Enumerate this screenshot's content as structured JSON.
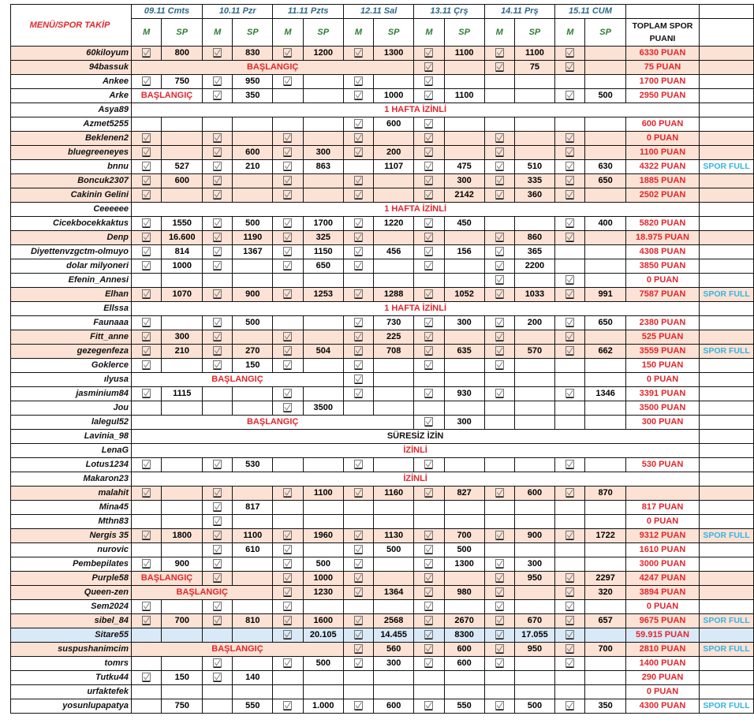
{
  "header": {
    "title": "MENÜ/SPOR TAKİP",
    "days": [
      "09.11 Cmts",
      "10.11 Pzr",
      "11.11 Pzts",
      "12.11 Sal",
      "13.11 Çrş",
      "14.11 Prş",
      "15.11 CUM"
    ],
    "m_label": "M",
    "sp_label": "SP",
    "total_label_1": "TOPLAM SPOR",
    "total_label_2": "PUANI"
  },
  "colors": {
    "highlight_pink": "#fbe2d5",
    "highlight_blue": "#dae9f8",
    "total_red": "#e3262b",
    "spor_full": "#35b3e3"
  },
  "rows": [
    {
      "name": "60kiloyum",
      "hl": "pink",
      "cells": [
        true,
        "800",
        true,
        "830",
        true,
        "1200",
        true,
        "1300",
        true,
        "1100",
        true,
        "1100",
        true,
        ""
      ],
      "total": "6330 PUAN",
      "note": ""
    },
    {
      "name": "94bassuk",
      "hl": "pink",
      "span": {
        "cols": 8,
        "text": "BAŞLANGIÇ",
        "color": "red"
      },
      "cells": [
        true,
        "",
        true,
        "75",
        true,
        ""
      ],
      "total": "75 PUAN",
      "note": ""
    },
    {
      "name": "Ankee",
      "hl": "",
      "cells": [
        true,
        "750",
        true,
        "950",
        true,
        "",
        true,
        "",
        true,
        "",
        "",
        "",
        "",
        ""
      ],
      "total": "1700 PUAN",
      "note": ""
    },
    {
      "name": "Arke",
      "hl": "",
      "span": {
        "cols": 2,
        "text": "BAŞLANGIÇ",
        "color": "red"
      },
      "cells": [
        true,
        "350",
        "",
        "",
        true,
        "1000",
        true,
        "1100",
        "",
        "",
        true,
        "500"
      ],
      "total": "2950 PUAN",
      "note": ""
    },
    {
      "name": "Asya89",
      "hl": "",
      "span": {
        "cols": 15,
        "text": "1 HAFTA İZİNLİ",
        "color": "red"
      },
      "cells": [],
      "note": ""
    },
    {
      "name": "Azmet5255",
      "hl": "",
      "cells": [
        "",
        "",
        "",
        "",
        "",
        "",
        true,
        "600",
        true,
        "",
        "",
        "",
        "",
        ""
      ],
      "total": "600 PUAN",
      "note": ""
    },
    {
      "name": "Beklenen2",
      "hl": "pink",
      "cells": [
        true,
        "",
        true,
        "",
        true,
        "",
        true,
        "",
        true,
        "",
        true,
        "",
        true,
        ""
      ],
      "total": "0 PUAN",
      "note": ""
    },
    {
      "name": "bluegreeneyes",
      "hl": "pink",
      "cells": [
        true,
        "",
        true,
        "600",
        true,
        "300",
        true,
        "200",
        true,
        "",
        true,
        "",
        true,
        ""
      ],
      "total": "1100 PUAN",
      "note": ""
    },
    {
      "name": "bnnu",
      "hl": "",
      "cells": [
        true,
        "527",
        true,
        "210",
        true,
        "863",
        "",
        "1107",
        true,
        "475",
        true,
        "510",
        true,
        "630"
      ],
      "total": "4322 PUAN",
      "note": "SPOR FULL"
    },
    {
      "name": "Boncuk2307",
      "hl": "pink",
      "cells": [
        true,
        "600",
        true,
        "",
        true,
        "",
        true,
        "",
        true,
        "300",
        true,
        "335",
        true,
        "650"
      ],
      "total": "1885  PUAN",
      "note": ""
    },
    {
      "name": "Cakinin Gelini",
      "hl": "pink",
      "cells": [
        true,
        "",
        true,
        "",
        true,
        "",
        true,
        "",
        true,
        "2142",
        true,
        "360",
        true,
        ""
      ],
      "total": "2502  PUAN",
      "note": ""
    },
    {
      "name": "Ceeeeee",
      "hl": "",
      "span": {
        "cols": 15,
        "text": "1 HAFTA İZİNLİ",
        "color": "red"
      },
      "cells": [],
      "note": ""
    },
    {
      "name": "Cicekbocekkaktus",
      "hl": "",
      "cells": [
        true,
        "1550",
        true,
        "500",
        true,
        "1700",
        true,
        "1220",
        true,
        "450",
        "",
        "",
        true,
        "400"
      ],
      "total": "5820 PUAN",
      "note": ""
    },
    {
      "name": "Denp",
      "hl": "pink",
      "cells": [
        true,
        "16.600",
        true,
        "1190",
        true,
        "325",
        true,
        "",
        true,
        "",
        true,
        "860",
        true,
        ""
      ],
      "total": "18.975 PUAN",
      "note": ""
    },
    {
      "name": "Diyettenvzgctm-olmuyo",
      "hl": "",
      "cells": [
        true,
        "814",
        true,
        "1367",
        true,
        "1150",
        true,
        "456",
        true,
        "156",
        true,
        "365",
        "",
        ""
      ],
      "total": "4308 PUAN",
      "note": ""
    },
    {
      "name": "dolar milyoneri",
      "hl": "",
      "cells": [
        true,
        "1000",
        true,
        "",
        true,
        "650",
        true,
        "",
        true,
        "",
        true,
        "2200",
        "",
        ""
      ],
      "total": "3850 PUAN",
      "note": ""
    },
    {
      "name": "Efenin_Annesi",
      "hl": "",
      "cells": [
        "",
        "",
        "",
        "",
        "",
        "",
        "",
        "",
        "",
        "",
        true,
        "",
        true,
        ""
      ],
      "total": "0 PUAN",
      "note": ""
    },
    {
      "name": "Elhan",
      "hl": "pink",
      "cells": [
        true,
        "1070",
        true,
        "900",
        true,
        "1253",
        true,
        "1288",
        true,
        "1052",
        true,
        "1033",
        true,
        "991"
      ],
      "total": "7587 PUAN",
      "note": "SPOR FULL"
    },
    {
      "name": "Ellssa",
      "hl": "",
      "span": {
        "cols": 15,
        "text": "1 HAFTA İZİNLİ",
        "color": "red"
      },
      "cells": [],
      "note": ""
    },
    {
      "name": "Faunaaa",
      "hl": "",
      "cells": [
        true,
        "",
        true,
        "500",
        "",
        "",
        true,
        "730",
        true,
        "300",
        true,
        "200",
        true,
        "650"
      ],
      "total": "2380 PUAN",
      "note": ""
    },
    {
      "name": "Fitt_anne",
      "hl": "pink",
      "cells": [
        true,
        "300",
        true,
        "",
        true,
        "",
        true,
        "225",
        true,
        "",
        true,
        "",
        true,
        ""
      ],
      "total": "525 PUAN",
      "note": ""
    },
    {
      "name": "gezegenfeza",
      "hl": "pink",
      "cells": [
        true,
        "210",
        true,
        "270",
        true,
        "504",
        true,
        "708",
        true,
        "635",
        true,
        "570",
        true,
        "662"
      ],
      "total": "3559 PUAN",
      "note": "SPOR FULL"
    },
    {
      "name": "Goklerce",
      "hl": "",
      "cells": [
        true,
        "",
        true,
        "150",
        true,
        "",
        true,
        "",
        true,
        "",
        true,
        "",
        "",
        ""
      ],
      "total": "150 PUAN",
      "note": ""
    },
    {
      "name": "ılyusa",
      "hl": "",
      "span": {
        "cols": 6,
        "text": "BAŞLANGIÇ",
        "color": "red"
      },
      "cells": [
        true,
        "",
        "",
        "",
        "",
        "",
        "",
        ""
      ],
      "total": "0 PUAN",
      "note": ""
    },
    {
      "name": "jasminium84",
      "hl": "",
      "cells": [
        true,
        "1115",
        "",
        "",
        true,
        "",
        true,
        "",
        true,
        "930",
        true,
        "",
        true,
        "1346"
      ],
      "total": "3391 PUAN",
      "note": ""
    },
    {
      "name": "Jou",
      "hl": "",
      "cells": [
        "",
        "",
        "",
        "",
        true,
        "3500",
        "",
        "",
        "",
        "",
        "",
        "",
        "",
        ""
      ],
      "total": "3500 PUAN",
      "note": ""
    },
    {
      "name": "lalegul52",
      "hl": "",
      "span": {
        "cols": 8,
        "text": "BAŞLANGIÇ",
        "color": "red"
      },
      "cells": [
        true,
        "300",
        "",
        "",
        "",
        ""
      ],
      "total": "300 PUAN",
      "note": ""
    },
    {
      "name": "Lavinia_98",
      "hl": "",
      "span": {
        "cols": 15,
        "text": "SÜRESİZ İZİN",
        "color": "black"
      },
      "cells": [],
      "note": ""
    },
    {
      "name": "LenaG",
      "hl": "",
      "span": {
        "cols": 15,
        "text": "İZİNLİ",
        "color": "red"
      },
      "cells": [],
      "note": ""
    },
    {
      "name": "Lotus1234",
      "hl": "",
      "cells": [
        true,
        "",
        true,
        "530",
        "",
        "",
        true,
        "",
        true,
        "",
        "",
        "",
        true,
        ""
      ],
      "total": "530 PUAN",
      "note": ""
    },
    {
      "name": "Makaron23",
      "hl": "",
      "span": {
        "cols": 15,
        "text": "İZİNLİ",
        "color": "red"
      },
      "cells": [],
      "note": ""
    },
    {
      "name": "malahit",
      "hl": "pink",
      "cells": [
        true,
        "",
        true,
        "",
        true,
        "1100",
        true,
        "1160",
        true,
        "827",
        true,
        "600",
        true,
        "870"
      ],
      "total": "",
      "note": ""
    },
    {
      "name": "Mina45",
      "hl": "",
      "cells": [
        "",
        "",
        true,
        "817",
        "",
        "",
        "",
        "",
        "",
        "",
        "",
        "",
        "",
        ""
      ],
      "total": "817 PUAN",
      "note": ""
    },
    {
      "name": "Mthn83",
      "hl": "",
      "cells": [
        "",
        "",
        true,
        "",
        "",
        "",
        "",
        "",
        "",
        "",
        "",
        "",
        "",
        ""
      ],
      "total": "0 PUAN",
      "note": ""
    },
    {
      "name": "Nergis 35",
      "hl": "pink",
      "cells": [
        true,
        "1800",
        true,
        "1100",
        true,
        "1960",
        true,
        "1130",
        true,
        "700",
        true,
        "900",
        true,
        "1722"
      ],
      "total": "9312 PUAN",
      "note": "SPOR FULL"
    },
    {
      "name": "nurovic",
      "hl": "",
      "cells": [
        "",
        "",
        true,
        "610",
        true,
        "",
        true,
        "500",
        true,
        "500",
        "",
        "",
        "",
        ""
      ],
      "total": "1610 PUAN",
      "note": ""
    },
    {
      "name": "Pembepilates",
      "hl": "",
      "cells": [
        true,
        "900",
        true,
        "",
        true,
        "500",
        true,
        "",
        true,
        "1300",
        true,
        "300",
        "",
        ""
      ],
      "total": "3000 PUAN",
      "note": ""
    },
    {
      "name": "Purple58",
      "hl": "pink",
      "span": {
        "cols": 2,
        "text": "BAŞLANGIÇ",
        "color": "red"
      },
      "cells": [
        true,
        "",
        true,
        "1000",
        true,
        "",
        true,
        "",
        true,
        "950",
        true,
        "2297"
      ],
      "total": "4247 PUAN",
      "note": ""
    },
    {
      "name": "Queen-zen",
      "hl": "pink",
      "span": {
        "cols": 4,
        "text": "BAŞLANGIÇ",
        "color": "red"
      },
      "cells": [
        true,
        "1230",
        true,
        "1364",
        true,
        "980",
        true,
        "",
        true,
        "320"
      ],
      "total": "3894 PUAN",
      "note": ""
    },
    {
      "name": "Sem2024",
      "hl": "",
      "cells": [
        true,
        "",
        true,
        "",
        true,
        "",
        "",
        "",
        true,
        "",
        true,
        "",
        true,
        ""
      ],
      "total": "0 PUAN",
      "note": ""
    },
    {
      "name": "sibel_84",
      "hl": "pink",
      "cells": [
        true,
        "700",
        true,
        "810",
        true,
        "1600",
        true,
        "2568",
        true,
        "2670",
        true,
        "670",
        true,
        "657"
      ],
      "total": "9675 PUAN",
      "note": "SPOR FULL"
    },
    {
      "name": "Sitare55",
      "hl": "blue",
      "cells": [
        "",
        "",
        "",
        "",
        true,
        "20.105",
        true,
        "14.455",
        true,
        "8300",
        true,
        "17.055",
        true,
        ""
      ],
      "total": "59.915 PUAN",
      "note": ""
    },
    {
      "name": "suspushanimcim",
      "hl": "pink",
      "span": {
        "cols": 6,
        "text": "BAŞLANGIÇ",
        "color": "red"
      },
      "cells": [
        true,
        "560",
        true,
        "600",
        true,
        "950",
        true,
        "700"
      ],
      "total": "2810 PUAN",
      "note": "SPOR FULL"
    },
    {
      "name": "tomrs",
      "hl": "",
      "cells": [
        "",
        "",
        true,
        "",
        true,
        "500",
        true,
        "300",
        true,
        "600",
        true,
        "",
        true,
        ""
      ],
      "total": "1400 PUAN",
      "note": ""
    },
    {
      "name": "Tutku44",
      "hl": "",
      "cells": [
        true,
        "150",
        true,
        "140",
        "",
        "",
        "",
        "",
        "",
        "",
        "",
        "",
        "",
        ""
      ],
      "total": "290 PUAN",
      "note": ""
    },
    {
      "name": "urfaktefek",
      "hl": "",
      "cells": [
        "",
        "",
        "",
        "",
        "",
        "",
        "",
        "",
        "",
        "",
        "",
        "",
        "",
        ""
      ],
      "total": "0 PUAN",
      "note": ""
    },
    {
      "name": "yosunlupapatya",
      "hl": "",
      "cells": [
        "",
        "750",
        "",
        "550",
        true,
        "1.000",
        true,
        "600",
        true,
        "550",
        true,
        "500",
        true,
        "350"
      ],
      "total": "4300 PUAN",
      "note": "SPOR FULL"
    }
  ]
}
